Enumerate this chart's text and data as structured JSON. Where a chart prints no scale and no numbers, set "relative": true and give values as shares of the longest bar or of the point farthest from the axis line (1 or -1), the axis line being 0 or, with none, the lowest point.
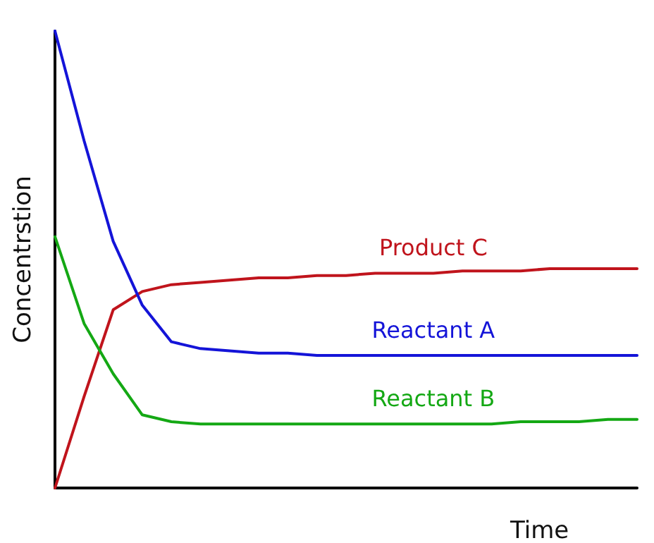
{
  "chart_data": {
    "type": "line",
    "relative": true,
    "xlabel": "Time",
    "ylabel": "Concentrstion",
    "grid": false,
    "legend": false,
    "marker": "none",
    "line_style": "solid",
    "categories": [
      null,
      null,
      null,
      null,
      null,
      null,
      null,
      null,
      null,
      null,
      null,
      null,
      null,
      null,
      null,
      null,
      null,
      null,
      null,
      null,
      null
    ],
    "series": [
      {
        "name": "Product C",
        "color": "#c0141c",
        "values": [
          0,
          0.2,
          0.39,
          0.43,
          0.445,
          0.45,
          0.455,
          0.46,
          0.46,
          0.465,
          0.465,
          0.47,
          0.47,
          0.47,
          0.475,
          0.475,
          0.475,
          0.48,
          0.48,
          0.48,
          0.48
        ]
      },
      {
        "name": "Reactant A",
        "color": "#1414d8",
        "values": [
          1,
          0.76,
          0.54,
          0.4,
          0.32,
          0.305,
          0.3,
          0.295,
          0.295,
          0.29,
          0.29,
          0.29,
          0.29,
          0.29,
          0.29,
          0.29,
          0.29,
          0.29,
          0.29,
          0.29,
          0.29
        ]
      },
      {
        "name": "Reactant B",
        "color": "#14a814",
        "values": [
          0.55,
          0.36,
          0.25,
          0.16,
          0.145,
          0.14,
          0.14,
          0.14,
          0.14,
          0.14,
          0.14,
          0.14,
          0.14,
          0.14,
          0.14,
          0.14,
          0.145,
          0.145,
          0.145,
          0.15,
          0.15
        ]
      }
    ]
  }
}
